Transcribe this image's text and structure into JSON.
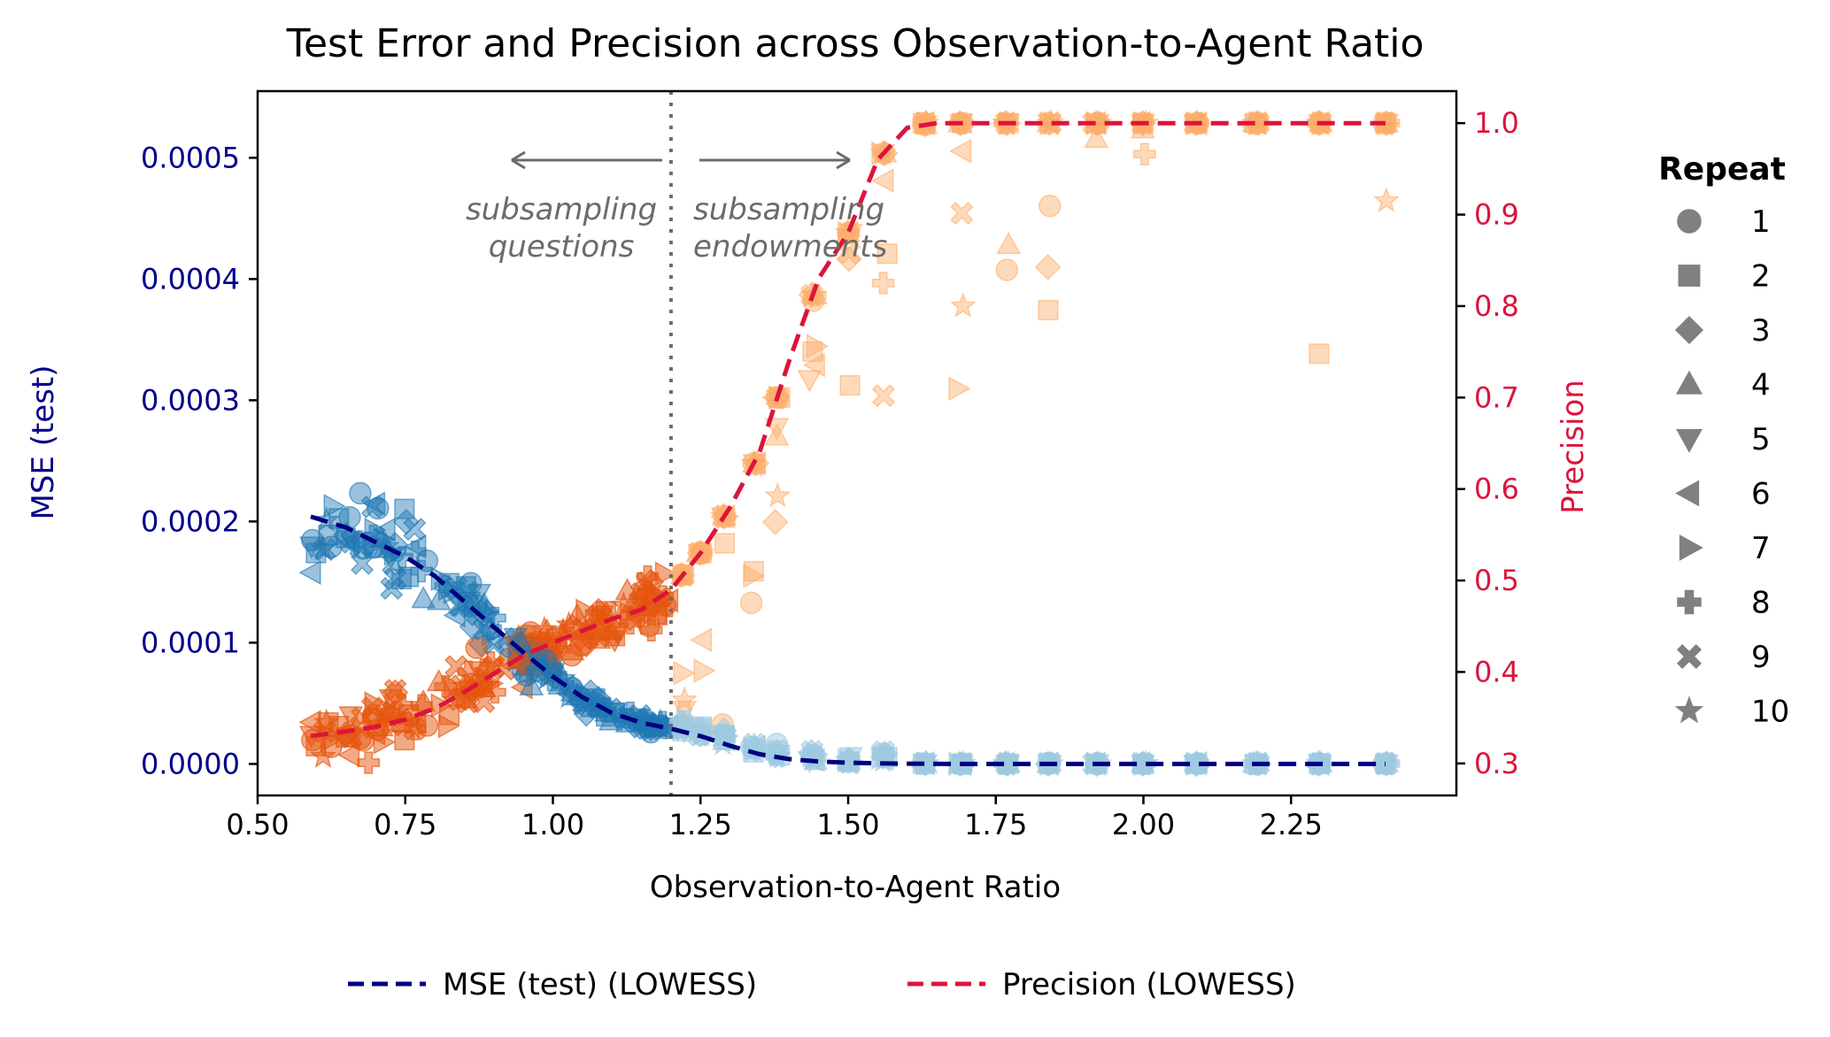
{
  "chart_data": {
    "type": "scatter",
    "title": "Test Error and Precision across Observation-to-Agent Ratio",
    "xlabel": "Observation-to-Agent Ratio",
    "ylabel_left": "MSE (test)",
    "ylabel_right": "Precision",
    "xlim": [
      0.5,
      2.53
    ],
    "ylim_left": [
      -2.6e-05,
      0.000555
    ],
    "ylim_right": [
      0.265,
      1.035
    ],
    "x_ticks": [
      "0.50",
      "0.75",
      "1.00",
      "1.25",
      "1.50",
      "1.75",
      "2.00",
      "2.25"
    ],
    "x_tick_values": [
      0.5,
      0.75,
      1.0,
      1.25,
      1.5,
      1.75,
      2.0,
      2.25
    ],
    "y_left_ticks": [
      "0.0000",
      "0.0001",
      "0.0002",
      "0.0003",
      "0.0004",
      "0.0005"
    ],
    "y_left_tick_values": [
      0,
      0.0001,
      0.0002,
      0.0003,
      0.0004,
      0.0005
    ],
    "y_right_ticks": [
      "0.3",
      "0.4",
      "0.5",
      "0.6",
      "0.7",
      "0.8",
      "0.9",
      "1.0"
    ],
    "y_right_tick_values": [
      0.3,
      0.4,
      0.5,
      0.6,
      0.7,
      0.8,
      0.9,
      1.0
    ],
    "vline_x": 1.2,
    "annotations": {
      "left": [
        "subsampling",
        "questions"
      ],
      "right": [
        "subsampling",
        "endowments"
      ]
    },
    "colors": {
      "mse_line": "#000080",
      "precision_line": "#dc143c",
      "left_axis": "#00008b",
      "right_axis": "#dc143c",
      "mse_points": "#1f77b4",
      "mse_points_light": "#9ecae1",
      "precision_points": "#e6550d",
      "precision_points_light": "#fdae6b",
      "vline": "#6b6b6b"
    },
    "series": [
      {
        "name": "MSE (test) (LOWESS)",
        "axis": "left",
        "x": [
          0.59,
          0.65,
          0.7,
          0.75,
          0.8,
          0.85,
          0.9,
          0.95,
          1.0,
          1.05,
          1.1,
          1.15,
          1.2,
          1.25,
          1.3,
          1.35,
          1.4,
          1.45,
          1.5,
          1.55,
          1.6,
          1.7,
          1.8,
          2.0,
          2.2,
          2.41
        ],
        "y": [
          0.000204,
          0.000195,
          0.000183,
          0.000171,
          0.000155,
          0.000134,
          0.000113,
          9.2e-05,
          7.2e-05,
          5.5e-05,
          4.2e-05,
          3.4e-05,
          2.9e-05,
          2.3e-05,
          1.5e-05,
          8e-06,
          4e-06,
          2e-06,
          1e-06,
          5e-07,
          2e-07,
          0,
          0,
          0,
          0,
          0
        ]
      },
      {
        "name": "Precision (LOWESS)",
        "axis": "right",
        "x": [
          0.59,
          0.65,
          0.7,
          0.75,
          0.8,
          0.85,
          0.9,
          0.95,
          1.0,
          1.05,
          1.1,
          1.15,
          1.2,
          1.25,
          1.3,
          1.35,
          1.4,
          1.45,
          1.5,
          1.55,
          1.6,
          1.65,
          1.7,
          1.8,
          2.0,
          2.2,
          2.41
        ],
        "y": [
          0.33,
          0.335,
          0.34,
          0.348,
          0.36,
          0.378,
          0.398,
          0.418,
          0.432,
          0.445,
          0.458,
          0.468,
          0.49,
          0.53,
          0.58,
          0.64,
          0.74,
          0.83,
          0.88,
          0.96,
          0.995,
          1.0,
          1.0,
          1.0,
          1.0,
          1.0,
          1.0
        ]
      }
    ],
    "legend": {
      "title": "Repeat",
      "placement": "right",
      "entries": [
        "1",
        "2",
        "3",
        "4",
        "5",
        "6",
        "7",
        "8",
        "9",
        "10"
      ],
      "markers": [
        "circle",
        "square",
        "diamond",
        "triangle-up",
        "triangle-down",
        "triangle-left",
        "triangle-right",
        "plus",
        "x",
        "star"
      ]
    },
    "bottom_legend": [
      "MSE (test) (LOWESS)",
      "Precision (LOWESS)"
    ]
  }
}
